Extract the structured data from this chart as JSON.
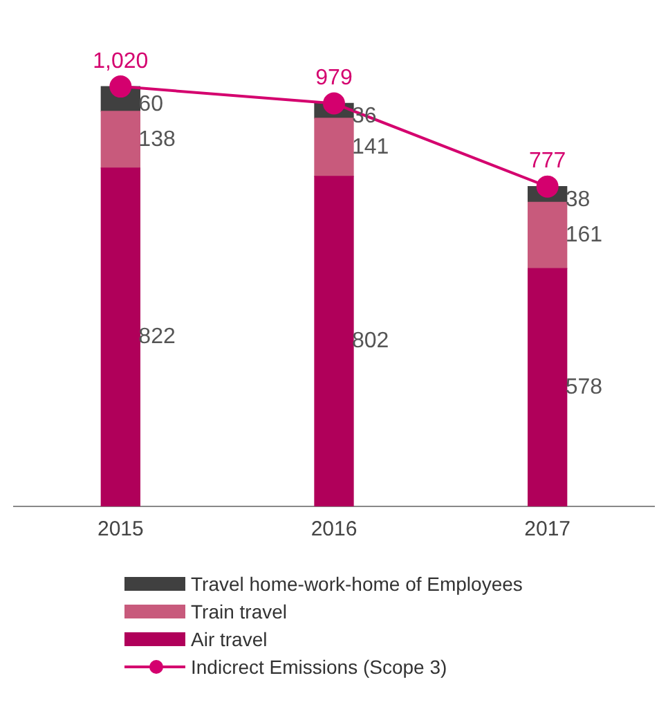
{
  "chart_data": {
    "type": "bar",
    "stacked": true,
    "categories": [
      "2015",
      "2016",
      "2017"
    ],
    "grid": false,
    "legend": "bottom",
    "data_labels": true,
    "marker": "circle",
    "series": [
      {
        "name": "Air travel",
        "color": "#b0005a",
        "values": [
          822,
          802,
          578
        ]
      },
      {
        "name": "Train travel",
        "color": "#c85a7c",
        "values": [
          138,
          141,
          161
        ]
      },
      {
        "name": "Travel home-work-home of Employees",
        "color": "#404040",
        "values": [
          60,
          36,
          38
        ]
      },
      {
        "name": "Indicrect Emissions (Scope 3)",
        "type": "line",
        "color": "#d4006e",
        "values": [
          1020,
          979,
          777
        ],
        "value_labels": [
          "1,020",
          "979",
          "777"
        ]
      }
    ]
  }
}
